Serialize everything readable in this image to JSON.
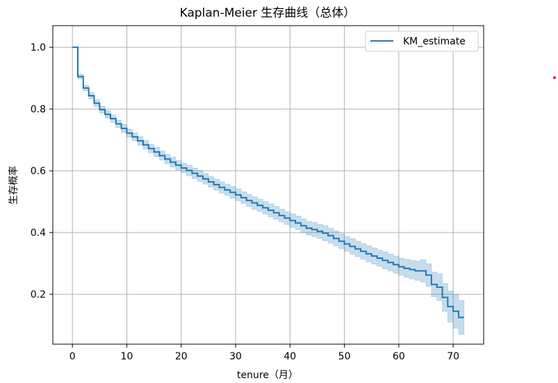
{
  "chart_data": {
    "type": "line",
    "title": "Kaplan-Meier 生存曲线（总体）",
    "xlabel": "tenure（月）",
    "ylabel": "生存概率",
    "xlim": [
      -3.6,
      75.6
    ],
    "ylim": [
      0.0385,
      1.07
    ],
    "x_ticks": [
      0,
      10,
      20,
      30,
      40,
      50,
      60,
      70
    ],
    "y_ticks": [
      0.2,
      0.4,
      0.6,
      0.8,
      1.0
    ],
    "x_tick_labels": [
      "0",
      "10",
      "20",
      "30",
      "40",
      "50",
      "60",
      "70"
    ],
    "y_tick_labels": [
      "0.2",
      "0.4",
      "0.6",
      "0.8",
      "1.0"
    ],
    "grid": true,
    "legend_position": "top-right",
    "series": [
      {
        "name": "KM_estimate",
        "color": "#1f77b4",
        "ci_color": "#1f77b4",
        "x": [
          0,
          1,
          2,
          3,
          4,
          5,
          6,
          7,
          8,
          9,
          10,
          11,
          12,
          13,
          14,
          15,
          16,
          17,
          18,
          19,
          20,
          21,
          22,
          23,
          24,
          25,
          26,
          27,
          28,
          29,
          30,
          31,
          32,
          33,
          34,
          35,
          36,
          37,
          38,
          39,
          40,
          41,
          42,
          43,
          44,
          45,
          46,
          47,
          48,
          49,
          50,
          51,
          52,
          53,
          54,
          55,
          56,
          57,
          58,
          59,
          60,
          61,
          62,
          63,
          64,
          65,
          66,
          67,
          68,
          69,
          70,
          71,
          72
        ],
        "y": [
          1.0,
          0.905,
          0.868,
          0.843,
          0.819,
          0.798,
          0.783,
          0.769,
          0.752,
          0.737,
          0.722,
          0.71,
          0.697,
          0.684,
          0.672,
          0.661,
          0.649,
          0.638,
          0.628,
          0.618,
          0.609,
          0.601,
          0.592,
          0.583,
          0.574,
          0.564,
          0.555,
          0.546,
          0.538,
          0.53,
          0.522,
          0.513,
          0.504,
          0.496,
          0.488,
          0.48,
          0.472,
          0.464,
          0.455,
          0.447,
          0.439,
          0.431,
          0.422,
          0.414,
          0.41,
          0.404,
          0.398,
          0.39,
          0.381,
          0.372,
          0.363,
          0.355,
          0.347,
          0.339,
          0.331,
          0.324,
          0.317,
          0.31,
          0.303,
          0.296,
          0.289,
          0.284,
          0.28,
          0.276,
          0.276,
          0.262,
          0.232,
          0.223,
          0.19,
          0.16,
          0.145,
          0.125,
          0.125
        ],
        "ci_lower": [
          1.0,
          0.897,
          0.859,
          0.833,
          0.808,
          0.787,
          0.771,
          0.757,
          0.74,
          0.724,
          0.709,
          0.697,
          0.683,
          0.67,
          0.658,
          0.646,
          0.634,
          0.623,
          0.612,
          0.602,
          0.593,
          0.584,
          0.575,
          0.566,
          0.557,
          0.547,
          0.537,
          0.528,
          0.52,
          0.511,
          0.503,
          0.494,
          0.485,
          0.476,
          0.468,
          0.46,
          0.451,
          0.443,
          0.434,
          0.426,
          0.417,
          0.409,
          0.4,
          0.392,
          0.387,
          0.381,
          0.374,
          0.366,
          0.357,
          0.348,
          0.339,
          0.33,
          0.322,
          0.314,
          0.305,
          0.298,
          0.291,
          0.283,
          0.276,
          0.268,
          0.261,
          0.255,
          0.25,
          0.245,
          0.24,
          0.225,
          0.192,
          0.18,
          0.145,
          0.11,
          0.09,
          0.07,
          0.07
        ],
        "ci_upper": [
          1.0,
          0.913,
          0.877,
          0.853,
          0.83,
          0.809,
          0.795,
          0.781,
          0.764,
          0.75,
          0.735,
          0.723,
          0.711,
          0.698,
          0.686,
          0.676,
          0.664,
          0.653,
          0.644,
          0.634,
          0.625,
          0.618,
          0.609,
          0.6,
          0.591,
          0.581,
          0.573,
          0.564,
          0.556,
          0.549,
          0.541,
          0.532,
          0.523,
          0.516,
          0.508,
          0.5,
          0.493,
          0.485,
          0.476,
          0.468,
          0.461,
          0.453,
          0.444,
          0.436,
          0.433,
          0.427,
          0.422,
          0.414,
          0.405,
          0.396,
          0.387,
          0.38,
          0.372,
          0.364,
          0.357,
          0.35,
          0.343,
          0.337,
          0.33,
          0.324,
          0.317,
          0.313,
          0.31,
          0.307,
          0.312,
          0.299,
          0.272,
          0.266,
          0.235,
          0.21,
          0.2,
          0.18,
          0.18
        ]
      }
    ]
  }
}
